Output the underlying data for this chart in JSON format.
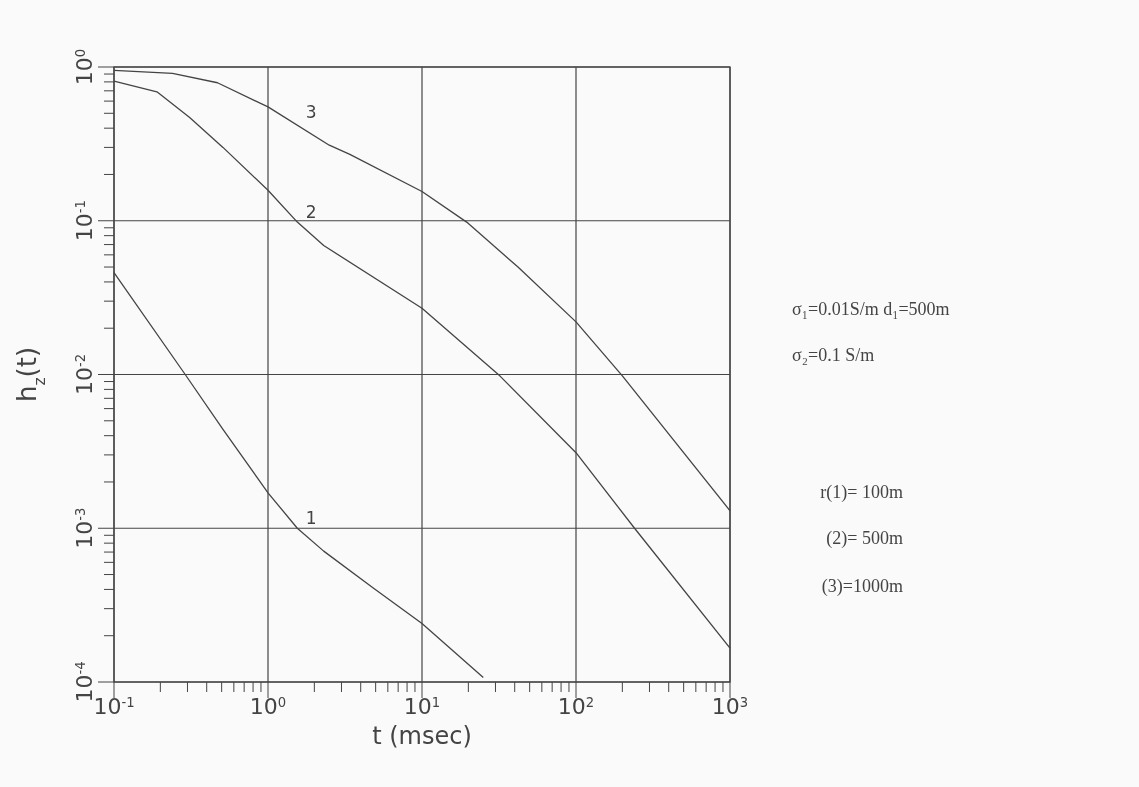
{
  "chart_data": {
    "type": "line",
    "xlabel": "t (msec)",
    "ylabel": "h$_{z}$(t)",
    "log": "xy",
    "grid": true,
    "marker": "none",
    "line_style": "solid",
    "xlim": [
      0.1,
      1000
    ],
    "ylim": [
      0.0001,
      1
    ],
    "xticks": [
      {
        "value": 0.1,
        "label": "10$^{-1}$"
      },
      {
        "value": 0.2,
        "label": null
      },
      {
        "value": 0.3,
        "label": null
      },
      {
        "value": 0.4,
        "label": null
      },
      {
        "value": 0.5,
        "label": null
      },
      {
        "value": 0.6,
        "label": null
      },
      {
        "value": 0.7,
        "label": null
      },
      {
        "value": 0.8,
        "label": null
      },
      {
        "value": 0.9,
        "label": null
      },
      {
        "value": 1,
        "label": "10$^{0}$"
      },
      {
        "value": 2,
        "label": null
      },
      {
        "value": 3,
        "label": null
      },
      {
        "value": 4,
        "label": null
      },
      {
        "value": 5,
        "label": null
      },
      {
        "value": 6,
        "label": null
      },
      {
        "value": 7,
        "label": null
      },
      {
        "value": 8,
        "label": null
      },
      {
        "value": 9,
        "label": null
      },
      {
        "value": 10,
        "label": "10$^{1}$"
      },
      {
        "value": 20,
        "label": null
      },
      {
        "value": 30,
        "label": null
      },
      {
        "value": 40,
        "label": null
      },
      {
        "value": 50,
        "label": null
      },
      {
        "value": 60,
        "label": null
      },
      {
        "value": 70,
        "label": null
      },
      {
        "value": 80,
        "label": null
      },
      {
        "value": 90,
        "label": null
      },
      {
        "value": 100,
        "label": "10$^{2}$"
      },
      {
        "value": 200,
        "label": null
      },
      {
        "value": 300,
        "label": null
      },
      {
        "value": 400,
        "label": null
      },
      {
        "value": 500,
        "label": null
      },
      {
        "value": 600,
        "label": null
      },
      {
        "value": 700,
        "label": null
      },
      {
        "value": 800,
        "label": null
      },
      {
        "value": 900,
        "label": null
      },
      {
        "value": 1000,
        "label": "10$^{3}$"
      }
    ],
    "yticks": [
      {
        "value": 0.0001,
        "label": "10$^{-4}$"
      },
      {
        "value": 0.0002,
        "label": null
      },
      {
        "value": 0.0003,
        "label": null
      },
      {
        "value": 0.0004,
        "label": null
      },
      {
        "value": 0.0005,
        "label": null
      },
      {
        "value": 0.0006,
        "label": null
      },
      {
        "value": 0.0007,
        "label": null
      },
      {
        "value": 0.0008,
        "label": null
      },
      {
        "value": 0.0009,
        "label": null
      },
      {
        "value": 0.001,
        "label": "10$^{-3}$"
      },
      {
        "value": 0.002,
        "label": null
      },
      {
        "value": 0.003,
        "label": null
      },
      {
        "value": 0.004,
        "label": null
      },
      {
        "value": 0.005,
        "label": null
      },
      {
        "value": 0.006,
        "label": null
      },
      {
        "value": 0.007,
        "label": null
      },
      {
        "value": 0.008,
        "label": null
      },
      {
        "value": 0.009,
        "label": null
      },
      {
        "value": 0.01,
        "label": "10$^{-2}$"
      },
      {
        "value": 0.02,
        "label": null
      },
      {
        "value": 0.03,
        "label": null
      },
      {
        "value": 0.04,
        "label": null
      },
      {
        "value": 0.05,
        "label": null
      },
      {
        "value": 0.06,
        "label": null
      },
      {
        "value": 0.07,
        "label": null
      },
      {
        "value": 0.08,
        "label": null
      },
      {
        "value": 0.09,
        "label": null
      },
      {
        "value": 0.1,
        "label": "10$^{-1}$"
      },
      {
        "value": 0.2,
        "label": null
      },
      {
        "value": 0.3,
        "label": null
      },
      {
        "value": 0.4,
        "label": null
      },
      {
        "value": 0.5,
        "label": null
      },
      {
        "value": 0.6,
        "label": null
      },
      {
        "value": 0.7,
        "label": null
      },
      {
        "value": 0.8,
        "label": null
      },
      {
        "value": 0.9,
        "label": null
      },
      {
        "value": 1,
        "label": "10$^{0}$"
      }
    ],
    "series": [
      {
        "name": "1",
        "color": "#444444",
        "x": [
          0.1,
          0.29,
          0.51,
          1,
          1.55,
          2.3,
          4.8,
          10,
          25
        ],
        "values": [
          0.046,
          0.01,
          0.0044,
          0.0017,
          0.001,
          0.00071,
          0.00041,
          0.00024,
          0.000107
        ]
      },
      {
        "name": "2",
        "color": "#444444",
        "x": [
          0.1,
          0.19,
          0.31,
          0.51,
          1,
          1.55,
          2.3,
          10,
          32,
          100,
          240,
          1000
        ],
        "values": [
          0.81,
          0.69,
          0.47,
          0.3,
          0.158,
          0.098,
          0.069,
          0.027,
          0.0098,
          0.0031,
          0.001,
          0.000166
        ]
      },
      {
        "name": "3",
        "color": "#444444",
        "x": [
          0.1,
          0.24,
          0.47,
          1,
          2.5,
          3.4,
          10,
          19.5,
          42,
          100,
          200,
          1000
        ],
        "values": [
          0.95,
          0.91,
          0.79,
          0.55,
          0.31,
          0.27,
          0.155,
          0.098,
          0.05,
          0.022,
          0.0098,
          0.0013
        ]
      }
    ],
    "annotations": [
      "σ₁=0.01S/m  d₁=500m",
      "σ₂=0.1 S/m",
      "r(1)= 100m",
      "(2)= 500m",
      "(3)=1000m"
    ]
  }
}
